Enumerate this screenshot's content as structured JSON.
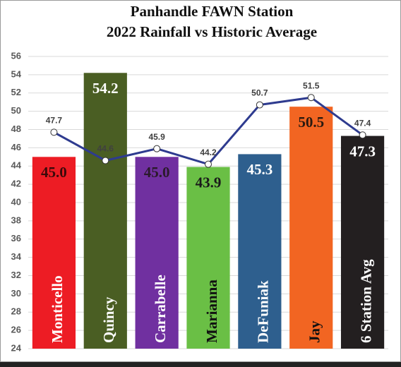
{
  "chart_data": {
    "type": "bar_line",
    "title": "Panhandle FAWN Station",
    "subtitle": "2022 Rainfall vs Historic Average",
    "categories": [
      "Monticello",
      "Quincy",
      "Carrabelle",
      "Marianna",
      "DeFuniak",
      "Jay",
      "6 Station Avg"
    ],
    "series": [
      {
        "type": "bar",
        "values": [
          45.0,
          54.2,
          45.0,
          43.9,
          45.3,
          50.5,
          47.3
        ],
        "value_labels": [
          "45.0",
          "54.2",
          "45.0",
          "43.9",
          "45.3",
          "50.5",
          "47.3"
        ],
        "colors": [
          "#ed1c24",
          "#4a5e23",
          "#7030a0",
          "#6abf45",
          "#2e5f8e",
          "#f26522",
          "#231f20"
        ],
        "label_colors": [
          "#3a0a0a",
          "#ffffff",
          "#2a1a2a",
          "#1a1a1a",
          "#ffffff",
          "#2a1a10",
          "#ffffff"
        ],
        "category_label_colors": [
          "#ffffff",
          "#ffffff",
          "#ffffff",
          "#111111",
          "#ffffff",
          "#111111",
          "#ffffff"
        ]
      },
      {
        "type": "line",
        "color": "#2e3b8f",
        "values": [
          47.7,
          44.6,
          45.9,
          44.2,
          50.7,
          51.5,
          47.4
        ]
      }
    ],
    "ylim": [
      24,
      56
    ],
    "yticks": [
      24,
      26,
      28,
      30,
      32,
      34,
      36,
      38,
      40,
      42,
      44,
      46,
      48,
      50,
      52,
      54,
      56
    ],
    "grid": true
  }
}
